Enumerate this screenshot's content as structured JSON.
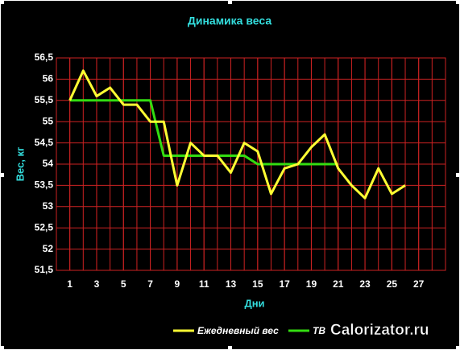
{
  "chart_data": {
    "type": "line",
    "title": "Динамика веса",
    "x_label": "Дни",
    "y_label": "Вес, кг",
    "x": [
      1,
      2,
      3,
      4,
      5,
      6,
      7,
      8,
      9,
      10,
      11,
      12,
      13,
      14,
      15,
      16,
      17,
      18,
      19,
      20,
      21,
      22,
      23,
      24,
      25,
      26
    ],
    "series": [
      {
        "name": "Ежедневный вес",
        "color": "#ffff33",
        "values": [
          55.5,
          56.2,
          55.6,
          55.8,
          55.4,
          55.4,
          55.0,
          55.0,
          53.5,
          54.5,
          54.2,
          54.2,
          53.8,
          54.5,
          54.3,
          53.3,
          53.9,
          54.0,
          54.4,
          54.7,
          53.9,
          53.5,
          53.2,
          53.9,
          53.3,
          53.5
        ]
      },
      {
        "name": "ТВ",
        "color": "#33dd11",
        "values": [
          55.5,
          55.5,
          55.5,
          55.5,
          55.5,
          55.5,
          55.5,
          54.2,
          54.2,
          54.2,
          54.2,
          54.2,
          54.2,
          54.2,
          54.0,
          54.0,
          54.0,
          54.0,
          54.0,
          54.0,
          54.0,
          null,
          null,
          null,
          null,
          null
        ]
      }
    ],
    "xlim": [
      0,
      29
    ],
    "xticks": [
      1,
      3,
      5,
      7,
      9,
      11,
      13,
      15,
      17,
      19,
      21,
      23,
      25,
      27
    ],
    "ylim": [
      51.5,
      56.5
    ],
    "yticks": [
      {
        "value": 51.5,
        "label": "51,5"
      },
      52,
      {
        "value": 52.5,
        "label": "52,5"
      },
      53,
      {
        "value": 53.5,
        "label": "53,5"
      },
      54,
      {
        "value": 54.5,
        "label": "54,5"
      },
      55,
      {
        "value": 55.5,
        "label": "55,5"
      },
      56,
      {
        "value": 56.5,
        "label": "56,5"
      }
    ],
    "grid": true,
    "grid_color": "#cc2222",
    "watermark": "Calorizator.ru"
  }
}
